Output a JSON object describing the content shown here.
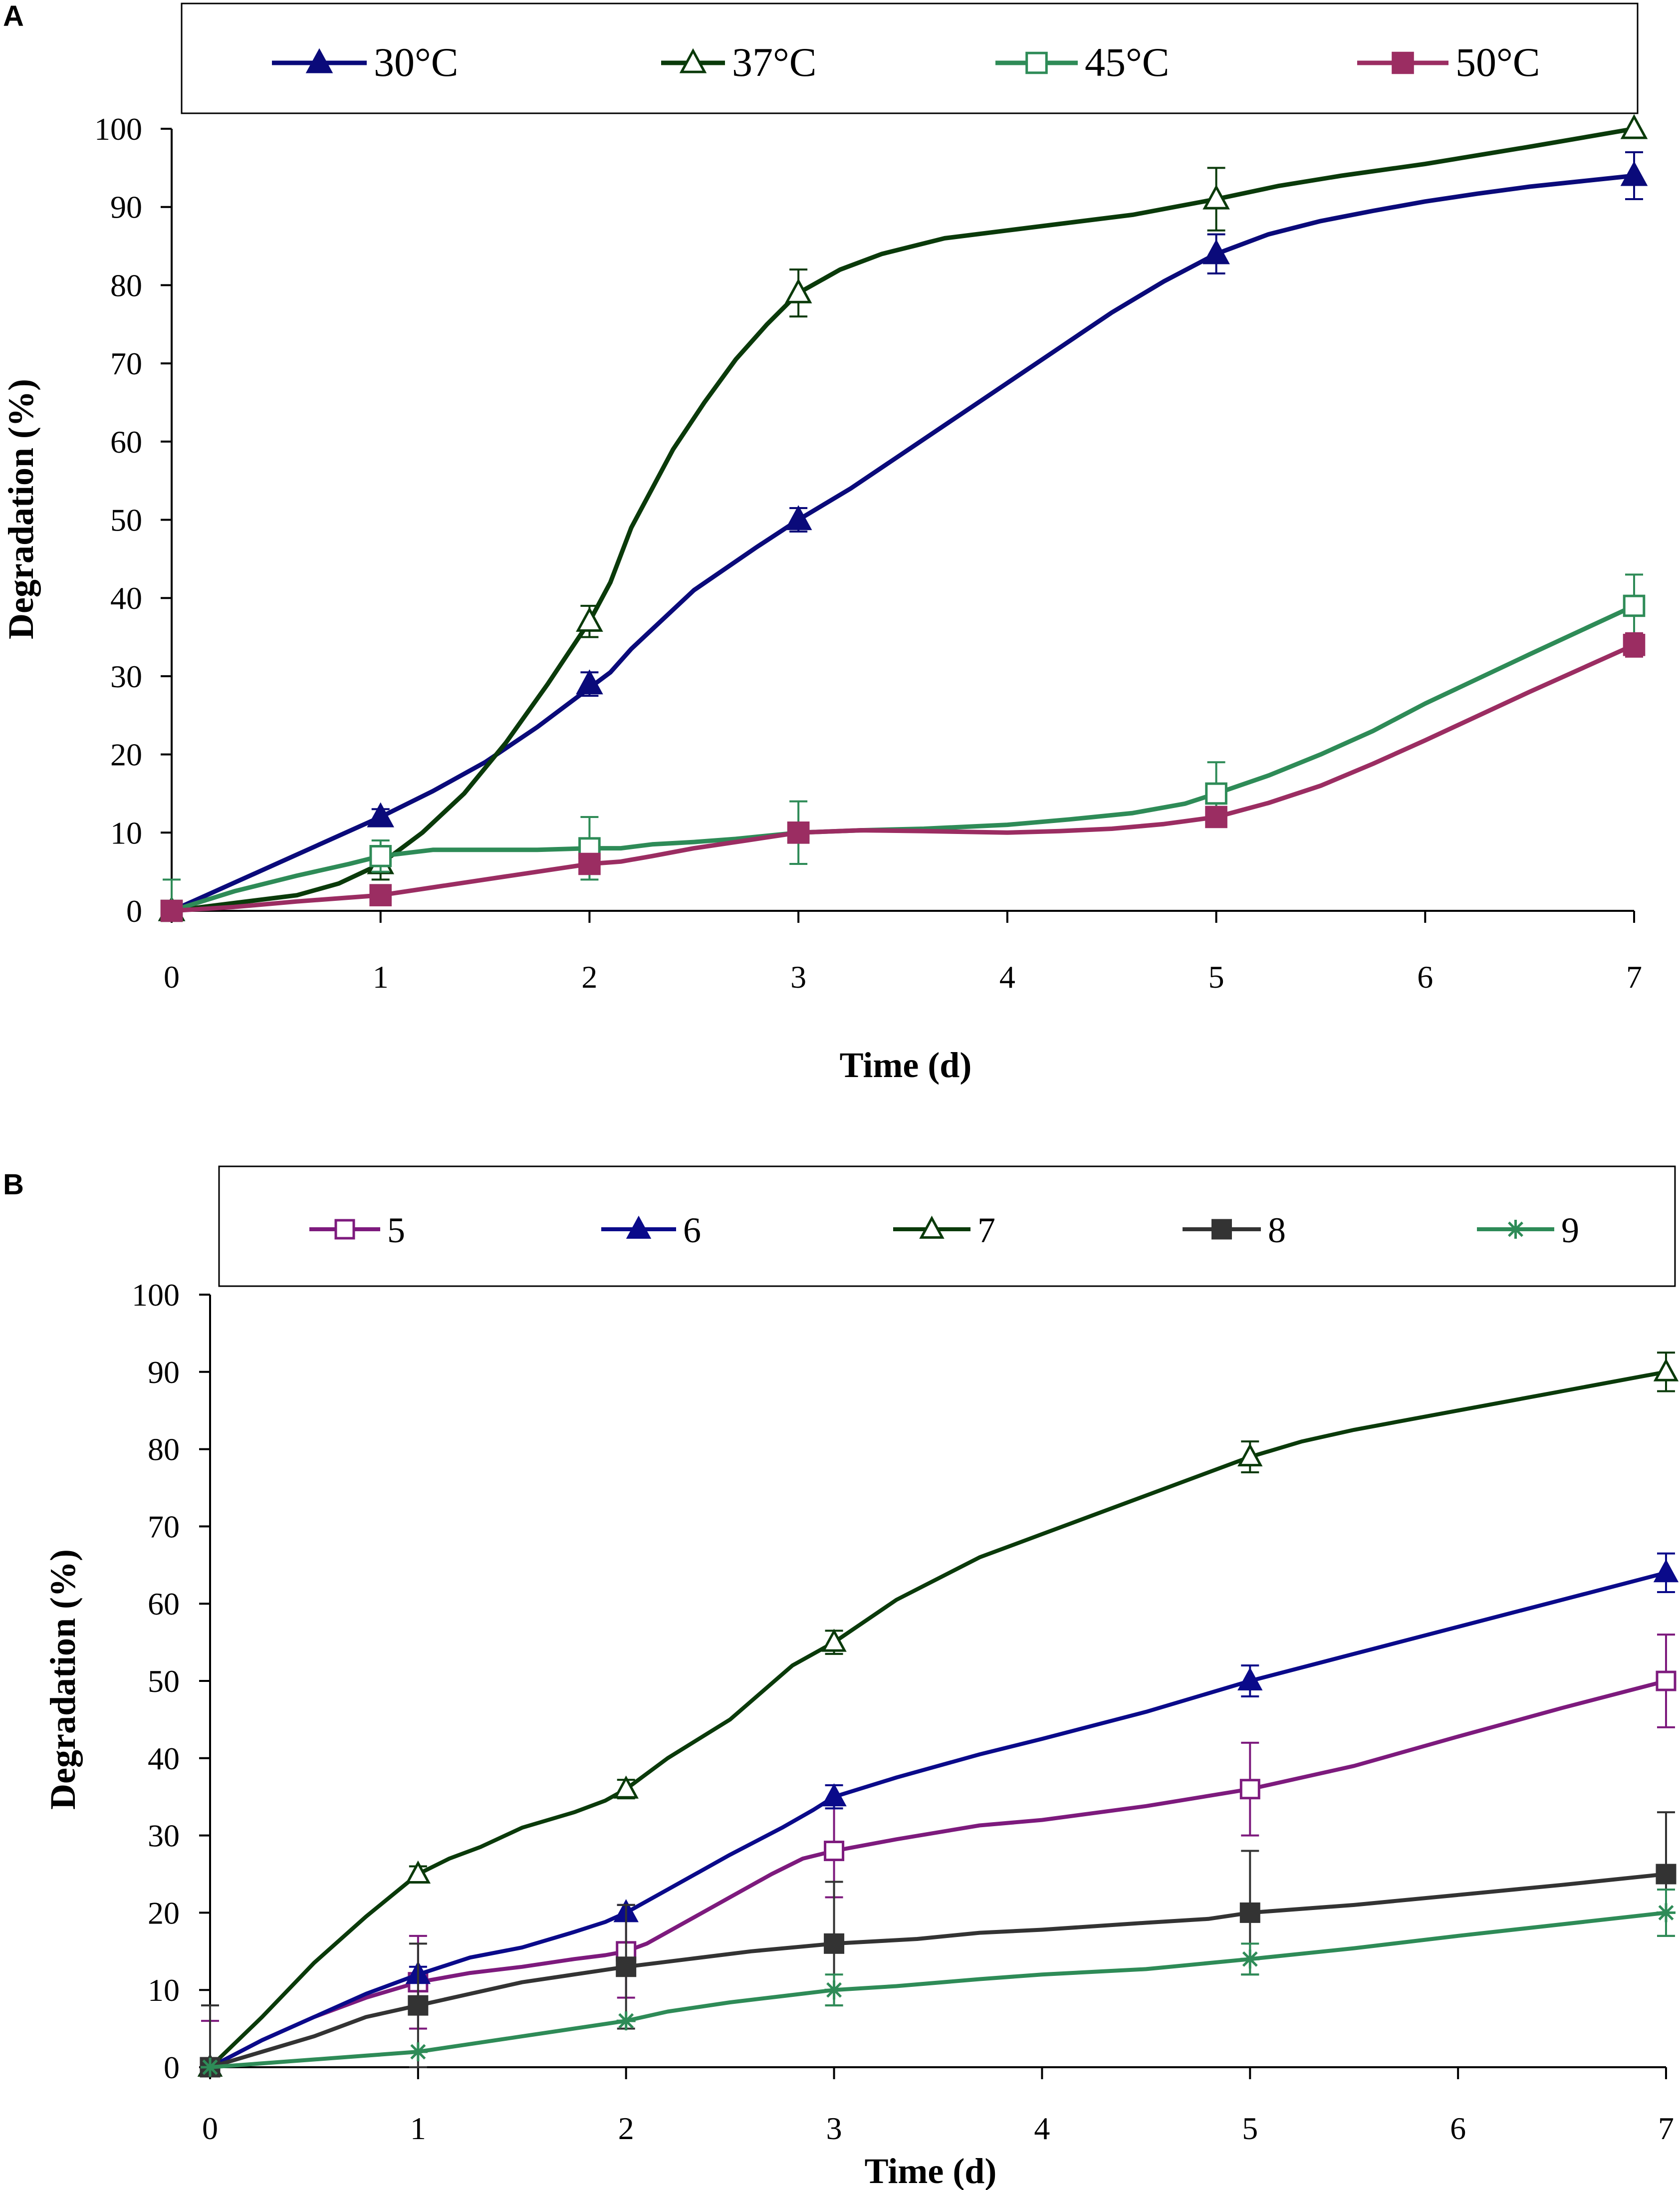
{
  "chart_data": [
    {
      "type": "line",
      "panel_label": "A",
      "title": "",
      "xlabel": "Time (d)",
      "ylabel": "Degradation (%)",
      "xlim": [
        0,
        7
      ],
      "ylim": [
        0,
        100
      ],
      "xticks": [
        "0",
        "1",
        "2",
        "3",
        "4",
        "5",
        "6",
        "7"
      ],
      "yticks": [
        "0",
        "10",
        "20",
        "30",
        "40",
        "50",
        "60",
        "70",
        "80",
        "90",
        "100"
      ],
      "legend_position": "top",
      "series": [
        {
          "name": "30°C",
          "color": "#0a0a7a",
          "marker": "triangle-filled",
          "x": [
            0,
            1,
            2,
            3,
            5,
            7
          ],
          "values": [
            0,
            12,
            29,
            50,
            84,
            94
          ],
          "errors": [
            0,
            1,
            1.5,
            1.5,
            2.5,
            3
          ],
          "curve_x": [
            0,
            0.25,
            0.5,
            0.75,
            1,
            1.25,
            1.5,
            1.75,
            2,
            2.1,
            2.2,
            2.5,
            2.8,
            3,
            3.25,
            3.5,
            3.75,
            4,
            4.25,
            4.5,
            4.75,
            5,
            5.25,
            5.5,
            5.75,
            6,
            6.25,
            6.5,
            6.75,
            7
          ],
          "curve_y": [
            0,
            3,
            6,
            9,
            12,
            15.3,
            19,
            23.5,
            28.5,
            30.5,
            33.5,
            41,
            46.5,
            50,
            54,
            58.5,
            63,
            67.5,
            72,
            76.5,
            80.5,
            84,
            86.5,
            88.2,
            89.5,
            90.7,
            91.7,
            92.6,
            93.3,
            94
          ]
        },
        {
          "name": "37°C",
          "color": "#0a3a0a",
          "marker": "triangle-open",
          "x": [
            0,
            1,
            2,
            3,
            5,
            7
          ],
          "values": [
            0,
            6,
            37,
            79,
            91,
            100
          ],
          "errors": [
            0,
            2,
            2,
            3,
            4,
            0
          ],
          "curve_x": [
            0,
            0.3,
            0.6,
            0.8,
            1,
            1.2,
            1.4,
            1.6,
            1.8,
            2,
            2.1,
            2.2,
            2.4,
            2.55,
            2.7,
            2.85,
            3,
            3.2,
            3.4,
            3.7,
            4,
            4.3,
            4.6,
            5,
            5.3,
            5.6,
            6,
            6.5,
            7
          ],
          "curve_y": [
            0,
            1,
            2,
            3.5,
            6,
            10,
            15,
            21.5,
            29,
            37,
            42,
            49,
            59,
            65,
            70.5,
            75,
            79,
            82,
            84,
            86,
            87,
            88,
            89,
            91,
            92.7,
            94,
            95.5,
            97.7,
            100
          ]
        },
        {
          "name": "45°C",
          "color": "#2e8b57",
          "marker": "square-open",
          "x": [
            0,
            1,
            2,
            3,
            5,
            7
          ],
          "values": [
            0,
            7,
            8,
            10,
            15,
            39
          ],
          "errors": [
            4,
            2,
            4,
            4,
            4,
            4
          ],
          "curve_x": [
            0,
            0.3,
            0.6,
            0.85,
            1,
            1.25,
            1.5,
            1.75,
            2,
            2.15,
            2.3,
            2.5,
            2.7,
            3,
            3.3,
            3.6,
            4,
            4.3,
            4.6,
            4.85,
            5,
            5.25,
            5.5,
            5.75,
            6,
            6.5,
            7
          ],
          "curve_y": [
            0,
            2.5,
            4.5,
            6,
            7,
            7.8,
            7.8,
            7.8,
            8,
            8,
            8.5,
            8.8,
            9.2,
            10,
            10.3,
            10.5,
            11,
            11.7,
            12.5,
            13.7,
            15,
            17.3,
            20,
            23,
            26.5,
            32.8,
            39
          ]
        },
        {
          "name": "50°C",
          "color": "#9b2d62",
          "marker": "square-filled",
          "x": [
            0,
            1,
            2,
            3,
            5,
            7
          ],
          "values": [
            0,
            2,
            6,
            10,
            12,
            34
          ],
          "errors": [
            0,
            0,
            0,
            0,
            0,
            1.5
          ],
          "curve_x": [
            0,
            0.3,
            0.6,
            0.85,
            1,
            1.25,
            1.5,
            1.75,
            2,
            2.15,
            2.3,
            2.5,
            2.75,
            3,
            3.3,
            3.6,
            4,
            4.25,
            4.5,
            4.75,
            5,
            5.25,
            5.5,
            5.75,
            6,
            6.5,
            7
          ],
          "curve_y": [
            0,
            0.5,
            1.2,
            1.7,
            2,
            3,
            4,
            5,
            6,
            6.3,
            7,
            8,
            9,
            10,
            10.3,
            10.2,
            10,
            10.2,
            10.5,
            11.1,
            12,
            13.8,
            16,
            18.8,
            21.8,
            28,
            34
          ]
        }
      ]
    },
    {
      "type": "line",
      "panel_label": "B",
      "title": "",
      "xlabel": "Time (d)",
      "ylabel": "Degradation (%)",
      "xlim": [
        0,
        7
      ],
      "ylim": [
        0,
        100
      ],
      "xticks": [
        "0",
        "1",
        "2",
        "3",
        "4",
        "5",
        "6",
        "7"
      ],
      "yticks": [
        "0",
        "10",
        "20",
        "30",
        "40",
        "50",
        "60",
        "70",
        "80",
        "90",
        "100"
      ],
      "legend_position": "top",
      "series": [
        {
          "name": "5",
          "color": "#7d1a7d",
          "marker": "square-open",
          "x": [
            0,
            1,
            2,
            3,
            5,
            7
          ],
          "values": [
            0,
            11,
            15,
            28,
            36,
            50
          ],
          "errors": [
            6,
            6,
            6,
            6,
            6,
            6
          ],
          "curve_x": [
            0,
            0.25,
            0.5,
            0.75,
            1,
            1.25,
            1.5,
            1.75,
            1.9,
            2,
            2.1,
            2.3,
            2.5,
            2.7,
            2.85,
            3,
            3.3,
            3.7,
            4,
            4.5,
            5,
            5.5,
            6,
            6.5,
            7
          ],
          "curve_y": [
            0,
            3.5,
            6.5,
            9,
            11,
            12.2,
            13,
            14,
            14.5,
            15,
            16,
            19,
            22,
            25,
            27,
            28,
            29.5,
            31.3,
            32,
            33.8,
            36,
            39,
            42.8,
            46.5,
            50
          ]
        },
        {
          "name": "6",
          "color": "#0a0a8a",
          "marker": "triangle-filled",
          "x": [
            0,
            1,
            2,
            3,
            5,
            7
          ],
          "values": [
            0,
            12,
            20,
            35,
            50,
            64
          ],
          "errors": [
            0,
            1,
            1,
            1.5,
            2,
            2.5
          ],
          "curve_x": [
            0,
            0.25,
            0.5,
            0.75,
            1,
            1.25,
            1.5,
            1.75,
            1.9,
            2,
            2.2,
            2.5,
            2.75,
            2.9,
            3,
            3.3,
            3.7,
            4,
            4.5,
            5,
            5.5,
            6,
            6.5,
            7
          ],
          "curve_y": [
            0,
            3.5,
            6.5,
            9.5,
            12,
            14.2,
            15.5,
            17.5,
            18.8,
            20,
            23,
            27.5,
            31,
            33.3,
            35,
            37.5,
            40.5,
            42.5,
            46,
            50,
            53.5,
            57,
            60.5,
            64
          ]
        },
        {
          "name": "7",
          "color": "#0a3a0a",
          "marker": "triangle-open",
          "x": [
            0,
            1,
            2,
            3,
            5,
            7
          ],
          "values": [
            0,
            25,
            36,
            55,
            79,
            90
          ],
          "errors": [
            0,
            1,
            1.2,
            1.5,
            2,
            2.5
          ],
          "curve_x": [
            0,
            0.25,
            0.5,
            0.75,
            1,
            1.15,
            1.3,
            1.5,
            1.75,
            1.9,
            2,
            2.2,
            2.5,
            2.8,
            3,
            3.3,
            3.7,
            4,
            4.5,
            5,
            5.25,
            5.5,
            6,
            6.5,
            7
          ],
          "curve_y": [
            0,
            6.5,
            13.5,
            19.5,
            25,
            27,
            28.5,
            31,
            33,
            34.5,
            36,
            40,
            45,
            52,
            55,
            60.5,
            66,
            69,
            74,
            79,
            81,
            82.5,
            85,
            87.5,
            90
          ]
        },
        {
          "name": "8",
          "color": "#333333",
          "marker": "square-filled",
          "x": [
            0,
            1,
            2,
            3,
            5,
            7
          ],
          "values": [
            0,
            8,
            13,
            16,
            20,
            25
          ],
          "errors": [
            8,
            8,
            8,
            8,
            8,
            8
          ],
          "curve_x": [
            0,
            0.25,
            0.5,
            0.75,
            1,
            1.25,
            1.5,
            1.75,
            2,
            2.3,
            2.6,
            3,
            3.4,
            3.7,
            4,
            4.5,
            4.8,
            5,
            5.5,
            6,
            6.5,
            7
          ],
          "curve_y": [
            0,
            2,
            4,
            6.5,
            8,
            9.5,
            11,
            12,
            13,
            14,
            15,
            16,
            16.6,
            17.4,
            17.8,
            18.7,
            19.2,
            20,
            21,
            22.3,
            23.6,
            25
          ]
        },
        {
          "name": "9",
          "color": "#2e8b57",
          "marker": "asterisk",
          "x": [
            0,
            1,
            2,
            3,
            5,
            7
          ],
          "values": [
            0,
            2,
            6,
            10,
            14,
            20
          ],
          "errors": [
            0,
            0,
            0,
            2,
            2,
            3
          ],
          "curve_x": [
            0,
            0.25,
            0.5,
            0.75,
            1,
            1.25,
            1.5,
            1.75,
            2,
            2.2,
            2.5,
            2.75,
            3,
            3.3,
            3.7,
            4,
            4.5,
            5,
            5.5,
            6,
            6.5,
            7
          ],
          "curve_y": [
            0,
            0.5,
            1,
            1.5,
            2,
            3,
            4,
            5,
            6,
            7.2,
            8.4,
            9.2,
            10,
            10.5,
            11.4,
            12,
            12.7,
            14,
            15.4,
            17,
            18.5,
            20
          ]
        }
      ]
    }
  ]
}
